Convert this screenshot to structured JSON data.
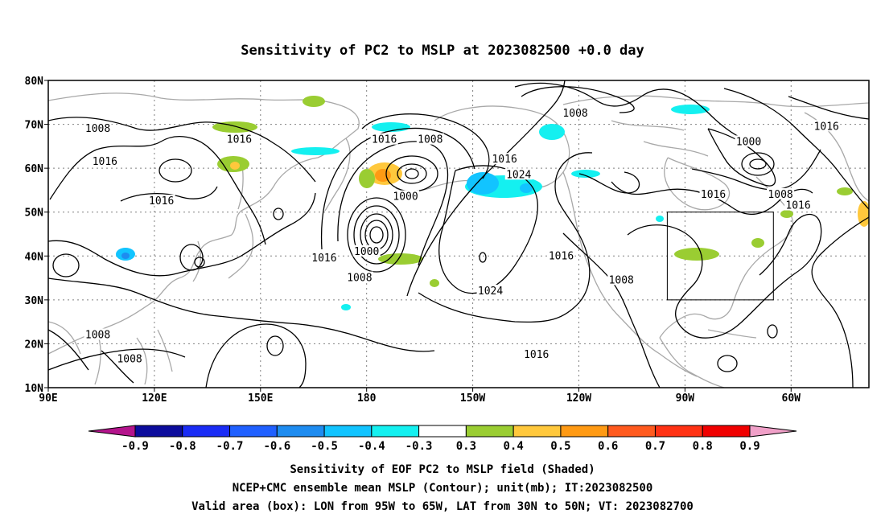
{
  "title": "Sensitivity of PC2 to MSLP at 2023082500 +0.0 day",
  "map": {
    "lat_ticks": [
      "80N",
      "70N",
      "60N",
      "50N",
      "40N",
      "30N",
      "20N",
      "10N"
    ],
    "lon_ticks": [
      "90E",
      "120E",
      "150E",
      "180",
      "150W",
      "120W",
      "90W",
      "60W"
    ],
    "valid_box": {
      "lon": [
        "95W",
        "65W"
      ],
      "lat": [
        "30N",
        "50N"
      ]
    },
    "contour_labels": [
      {
        "text": "1008",
        "lat": 69,
        "lon": 104
      },
      {
        "text": "1016",
        "lat": 61.5,
        "lon": 106
      },
      {
        "text": "1016",
        "lat": 66.5,
        "lon": 144
      },
      {
        "text": "1016",
        "lat": 52.5,
        "lon": 122
      },
      {
        "text": "1016",
        "lat": 39.5,
        "lon": 168
      },
      {
        "text": "1016",
        "lat": 66.5,
        "lon": 185
      },
      {
        "text": "1008",
        "lat": 66.5,
        "lon": 198
      },
      {
        "text": "1000",
        "lat": 53.5,
        "lon": 191
      },
      {
        "text": "1000",
        "lat": 41,
        "lon": 180
      },
      {
        "text": "1008",
        "lat": 35,
        "lon": 178
      },
      {
        "text": "1016",
        "lat": 62,
        "lon": 219
      },
      {
        "text": "1024",
        "lat": 58.5,
        "lon": 223
      },
      {
        "text": "1024",
        "lat": 32,
        "lon": 215
      },
      {
        "text": "1016",
        "lat": 40,
        "lon": 235
      },
      {
        "text": "1016",
        "lat": 17.5,
        "lon": 228
      },
      {
        "text": "1008",
        "lat": 72.5,
        "lon": 239
      },
      {
        "text": "1008",
        "lat": 34.5,
        "lon": 252
      },
      {
        "text": "1000",
        "lat": 66,
        "lon": 288
      },
      {
        "text": "1016",
        "lat": 54,
        "lon": 278
      },
      {
        "text": "1008",
        "lat": 54,
        "lon": 297
      },
      {
        "text": "1016",
        "lat": 51.5,
        "lon": 302
      },
      {
        "text": "1016",
        "lat": 69.5,
        "lon": 310
      },
      {
        "text": "1008",
        "lat": 22,
        "lon": 104
      },
      {
        "text": "1008",
        "lat": 16.5,
        "lon": 113
      }
    ]
  },
  "colorbar": {
    "labels": [
      "-0.9",
      "-0.8",
      "-0.7",
      "-0.6",
      "-0.5",
      "-0.4",
      "-0.3",
      "0.3",
      "0.4",
      "0.5",
      "0.6",
      "0.7",
      "0.8",
      "0.9"
    ],
    "colors": [
      "#0c0c9c",
      "#1a2cf5",
      "#2060ff",
      "#1e8cf0",
      "#12c4ff",
      "#14f0f0",
      "#ffffff",
      "#9acd32",
      "#ffc83c",
      "#ff9a14",
      "#ff5a1e",
      "#ff3214",
      "#f00000"
    ],
    "low_end_color": "#b4148c",
    "high_end_color": "#f0a0c8"
  },
  "captions": [
    "Sensitivity of EOF PC2 to MSLP field (Shaded)",
    "NCEP+CMC ensemble mean MSLP (Contour); unit(mb); IT:2023082500",
    "Valid area (box): LON from 95W to 65W, LAT from 30N to 50N; VT: 2023082700"
  ]
}
